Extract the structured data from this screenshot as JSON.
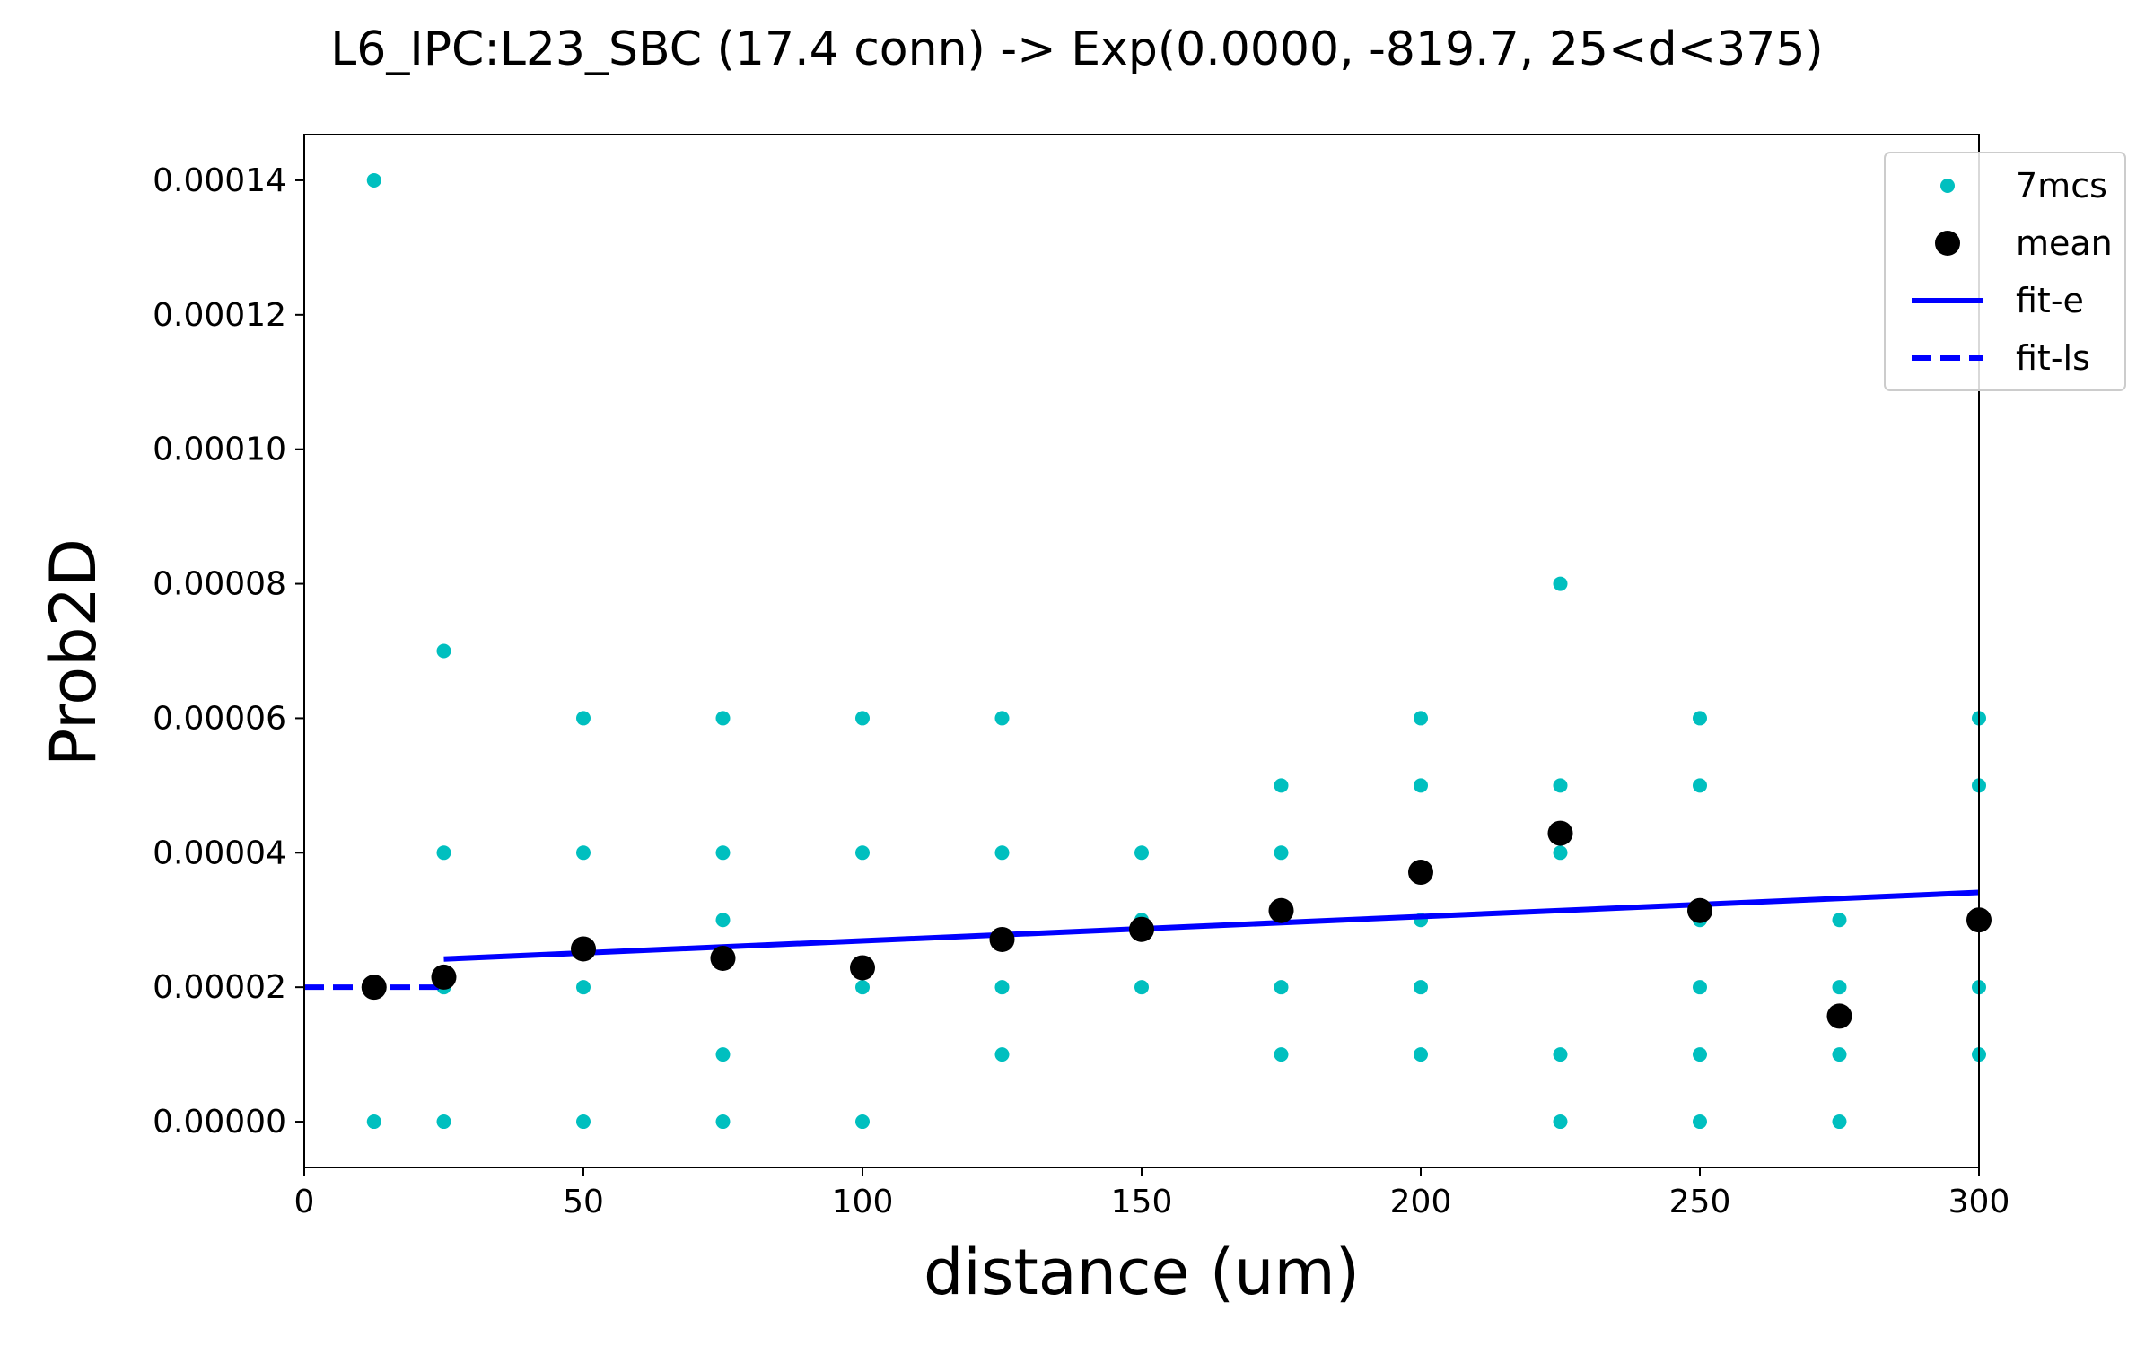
{
  "chart_data": {
    "type": "scatter",
    "title": "L6_IPC:L23_SBC (17.4 conn) -> Exp(0.0000, -819.7, 25<d<375)",
    "xlabel": "distance (um)",
    "ylabel": "Prob2D",
    "xlim": [
      0,
      300
    ],
    "ylim": [
      -6.8e-06,
      0.0001468
    ],
    "xticks": [
      0,
      50,
      100,
      150,
      200,
      250,
      300
    ],
    "xtick_labels": [
      "0",
      "50",
      "100",
      "150",
      "200",
      "250",
      "300"
    ],
    "yticks": [
      0,
      2e-05,
      4e-05,
      6e-05,
      8e-05,
      0.0001,
      0.00012,
      0.00014
    ],
    "ytick_labels": [
      "0.00000",
      "0.00002",
      "0.00004",
      "0.00006",
      "0.00008",
      "0.00010",
      "0.00012",
      "0.00014"
    ],
    "grid": false,
    "legend_position": "top-right",
    "colors": {
      "samples": "#00bfbf",
      "mean": "#000000",
      "fit": "#0000ff"
    },
    "series": [
      {
        "name": "7mcs",
        "kind": "scatter-small",
        "points": [
          [
            12.5,
            0.00014
          ],
          [
            12.5,
            2e-05
          ],
          [
            12.5,
            0
          ],
          [
            25,
            7e-05
          ],
          [
            25,
            4e-05
          ],
          [
            25,
            2e-05
          ],
          [
            25,
            0
          ],
          [
            50,
            6e-05
          ],
          [
            50,
            4e-05
          ],
          [
            50,
            2e-05
          ],
          [
            50,
            0
          ],
          [
            75,
            6e-05
          ],
          [
            75,
            4e-05
          ],
          [
            75,
            3e-05
          ],
          [
            75,
            1e-05
          ],
          [
            75,
            0
          ],
          [
            100,
            6e-05
          ],
          [
            100,
            4e-05
          ],
          [
            100,
            2e-05
          ],
          [
            100,
            0
          ],
          [
            125,
            6e-05
          ],
          [
            125,
            4e-05
          ],
          [
            125,
            2e-05
          ],
          [
            125,
            1e-05
          ],
          [
            150,
            4e-05
          ],
          [
            150,
            3e-05
          ],
          [
            150,
            2e-05
          ],
          [
            175,
            5e-05
          ],
          [
            175,
            4e-05
          ],
          [
            175,
            2e-05
          ],
          [
            175,
            1e-05
          ],
          [
            200,
            6e-05
          ],
          [
            200,
            5e-05
          ],
          [
            200,
            3e-05
          ],
          [
            200,
            2e-05
          ],
          [
            200,
            1e-05
          ],
          [
            225,
            8e-05
          ],
          [
            225,
            5e-05
          ],
          [
            225,
            4e-05
          ],
          [
            225,
            1e-05
          ],
          [
            225,
            0
          ],
          [
            250,
            6e-05
          ],
          [
            250,
            5e-05
          ],
          [
            250,
            3e-05
          ],
          [
            250,
            2e-05
          ],
          [
            250,
            1e-05
          ],
          [
            250,
            0
          ],
          [
            275,
            3e-05
          ],
          [
            275,
            2e-05
          ],
          [
            275,
            1e-05
          ],
          [
            275,
            0
          ],
          [
            300,
            6e-05
          ],
          [
            300,
            5e-05
          ],
          [
            300,
            2e-05
          ],
          [
            300,
            1e-05
          ]
        ]
      },
      {
        "name": "mean",
        "kind": "scatter-large",
        "points": [
          [
            12.5,
            2e-05
          ],
          [
            25,
            2.15e-05
          ],
          [
            50,
            2.57e-05
          ],
          [
            75,
            2.43e-05
          ],
          [
            100,
            2.29e-05
          ],
          [
            125,
            2.71e-05
          ],
          [
            150,
            2.86e-05
          ],
          [
            175,
            3.14e-05
          ],
          [
            200,
            3.71e-05
          ],
          [
            225,
            4.29e-05
          ],
          [
            250,
            3.14e-05
          ],
          [
            275,
            1.57e-05
          ],
          [
            300,
            3e-05
          ]
        ]
      },
      {
        "name": "fit-e",
        "kind": "line-solid",
        "points": [
          [
            25,
            2.42e-05
          ],
          [
            300,
            3.41e-05
          ]
        ]
      },
      {
        "name": "fit-ls",
        "kind": "line-dashed",
        "points": [
          [
            0,
            2e-05
          ],
          [
            25,
            2e-05
          ]
        ]
      }
    ]
  }
}
